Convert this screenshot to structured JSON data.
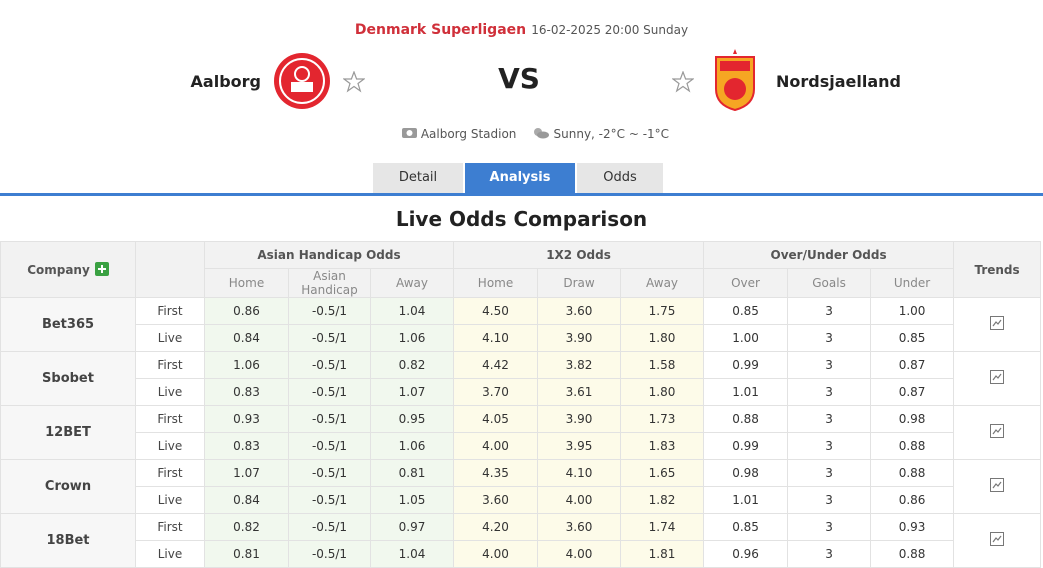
{
  "header": {
    "league": "Denmark Superligaen",
    "datetime": "16-02-2025 20:00 Sunday",
    "home_team": "Aalborg",
    "vs": "VS",
    "away_team": "Nordsjaelland",
    "venue": "Aalborg Stadion",
    "weather": "Sunny, -2°C ~ -1°C"
  },
  "tabs": [
    "Detail",
    "Analysis",
    "Odds"
  ],
  "title": "Live Odds Comparison",
  "table": {
    "company_header": "Company",
    "trends_header": "Trends",
    "groups": [
      {
        "name": "Asian Handicap Odds",
        "columns": [
          "Home",
          "Asian Handicap",
          "Away"
        ]
      },
      {
        "name": "1X2 Odds",
        "columns": [
          "Home",
          "Draw",
          "Away"
        ]
      },
      {
        "name": "Over/Under Odds",
        "columns": [
          "Over",
          "Goals",
          "Under"
        ]
      }
    ],
    "rows": [
      {
        "company": "Bet365",
        "lines": [
          {
            "type": "First",
            "values": [
              "0.86",
              "-0.5/1",
              "1.04",
              "4.50",
              "3.60",
              "1.75",
              "0.85",
              "3",
              "1.00"
            ]
          },
          {
            "type": "Live",
            "values": [
              "0.84",
              "-0.5/1",
              "1.06",
              "4.10",
              "3.90",
              "1.80",
              "1.00",
              "3",
              "0.85"
            ]
          }
        ]
      },
      {
        "company": "Sbobet",
        "lines": [
          {
            "type": "First",
            "values": [
              "1.06",
              "-0.5/1",
              "0.82",
              "4.42",
              "3.82",
              "1.58",
              "0.99",
              "3",
              "0.87"
            ]
          },
          {
            "type": "Live",
            "values": [
              "0.83",
              "-0.5/1",
              "1.07",
              "3.70",
              "3.61",
              "1.80",
              "1.01",
              "3",
              "0.87"
            ]
          }
        ]
      },
      {
        "company": "12BET",
        "lines": [
          {
            "type": "First",
            "values": [
              "0.93",
              "-0.5/1",
              "0.95",
              "4.05",
              "3.90",
              "1.73",
              "0.88",
              "3",
              "0.98"
            ]
          },
          {
            "type": "Live",
            "values": [
              "0.83",
              "-0.5/1",
              "1.06",
              "4.00",
              "3.95",
              "1.83",
              "0.99",
              "3",
              "0.88"
            ]
          }
        ]
      },
      {
        "company": "Crown",
        "lines": [
          {
            "type": "First",
            "values": [
              "1.07",
              "-0.5/1",
              "0.81",
              "4.35",
              "4.10",
              "1.65",
              "0.98",
              "3",
              "0.88"
            ]
          },
          {
            "type": "Live",
            "values": [
              "0.84",
              "-0.5/1",
              "1.05",
              "3.60",
              "4.00",
              "1.82",
              "1.01",
              "3",
              "0.86"
            ]
          }
        ]
      },
      {
        "company": "18Bet",
        "lines": [
          {
            "type": "First",
            "values": [
              "0.82",
              "-0.5/1",
              "0.97",
              "4.20",
              "3.60",
              "1.74",
              "0.85",
              "3",
              "0.93"
            ]
          },
          {
            "type": "Live",
            "values": [
              "0.81",
              "-0.5/1",
              "1.04",
              "4.00",
              "4.00",
              "1.81",
              "0.96",
              "3",
              "0.88"
            ]
          }
        ]
      }
    ]
  }
}
